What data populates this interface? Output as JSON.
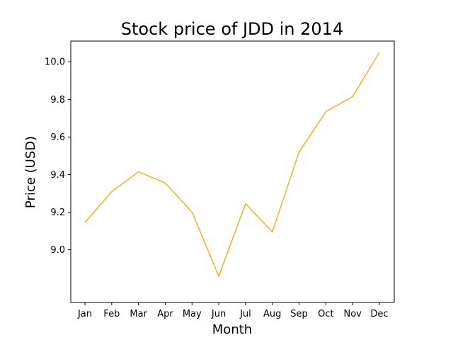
{
  "chart_data": {
    "type": "line",
    "title": "Stock price of JDD in 2014",
    "xlabel": "Month",
    "ylabel": "Price (USD)",
    "categories": [
      "Jan",
      "Feb",
      "Mar",
      "Apr",
      "May",
      "Jun",
      "Jul",
      "Aug",
      "Sep",
      "Oct",
      "Nov",
      "Dec"
    ],
    "series": [
      {
        "values": [
          9.145,
          9.31,
          9.415,
          9.355,
          9.2,
          8.86,
          9.245,
          9.095,
          9.52,
          9.735,
          9.815,
          10.05
        ],
        "color": "#FFA500"
      }
    ],
    "ylim": [
      8.72,
      10.11
    ],
    "yticks": [
      "9.0",
      "9.2",
      "9.4",
      "9.6",
      "9.8",
      "10.0"
    ],
    "grid": false,
    "legend": false
  }
}
